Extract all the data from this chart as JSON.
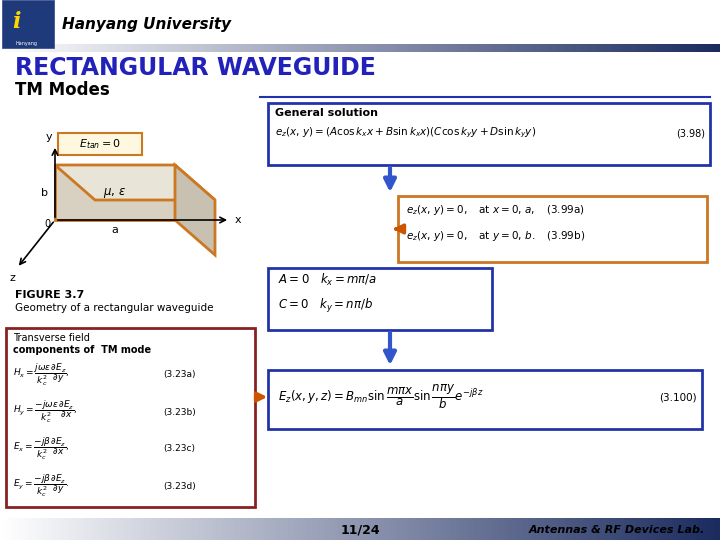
{
  "title": "RECTANGULAR WAVEGUIDE",
  "subtitle": "TM Modes",
  "university": "Hanyang University",
  "page": "11/24",
  "lab": "Antennas & RF Devices Lab.",
  "title_color": "#2222bb",
  "bg_color": "#ffffff",
  "figure_caption_1": "FIGURE 3.7",
  "figure_caption_2": "Geometry of a rectangular waveguide",
  "box1_border": "#2233aa",
  "box2_border": "#cc7722",
  "box3_border": "#2233aa",
  "box4_border": "#2233aa",
  "box5_border": "#882222",
  "arrow_color_down": "#3355cc",
  "arrow_color_right": "#cc5500",
  "header_dark": "#1a2a5e",
  "footer_dark": "#1a2a5e"
}
